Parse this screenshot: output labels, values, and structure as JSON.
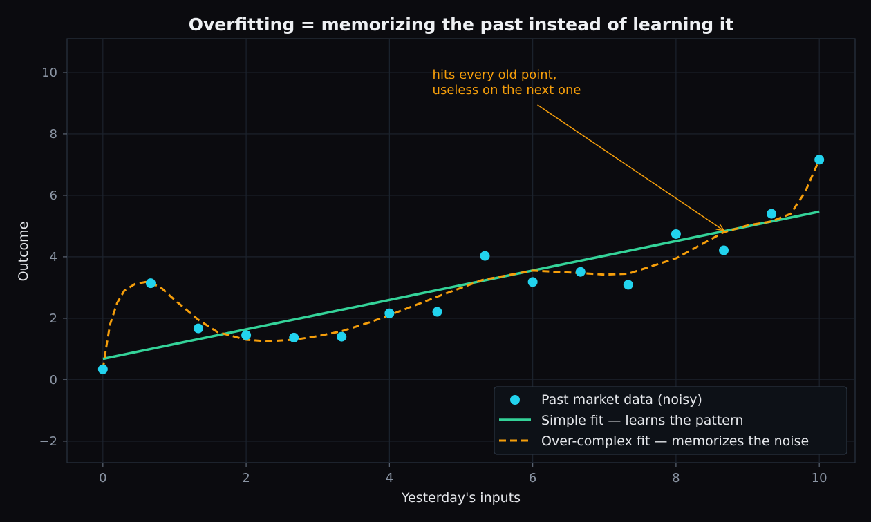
{
  "chart_data": {
    "type": "scatter",
    "title": "Overfitting = memorizing the past instead of learning it",
    "xlabel": "Yesterday's inputs",
    "ylabel": "Outcome",
    "xlim": [
      -0.5,
      10.5
    ],
    "ylim": [
      -2.7,
      11.1
    ],
    "xticks": [
      0,
      2,
      4,
      6,
      8,
      10
    ],
    "xtick_labels": [
      "0",
      "2",
      "4",
      "6",
      "8",
      "10"
    ],
    "yticks": [
      -2,
      0,
      2,
      4,
      6,
      8,
      10
    ],
    "ytick_labels": [
      "−2",
      "0",
      "2",
      "4",
      "6",
      "8",
      "10"
    ],
    "grid": true,
    "legend_position": "lower-right",
    "series": [
      {
        "name": "Past market data (noisy)",
        "kind": "scatter",
        "color": "#22d3ee",
        "x": [
          0,
          0.667,
          1.333,
          2.0,
          2.667,
          3.333,
          4.0,
          4.667,
          5.333,
          6.0,
          6.667,
          7.333,
          8.0,
          8.667,
          9.333,
          10.0
        ],
        "y": [
          0.34,
          3.14,
          1.67,
          1.45,
          1.37,
          1.4,
          2.16,
          2.21,
          4.03,
          3.18,
          3.51,
          3.09,
          4.74,
          4.21,
          5.4,
          7.16
        ]
      },
      {
        "name": "Simple fit — learns the pattern",
        "kind": "line",
        "color": "#34d399",
        "x": [
          0,
          10
        ],
        "y": [
          0.68,
          5.47
        ]
      },
      {
        "name": "Over-complex fit — memorizes the noise",
        "kind": "line",
        "style": "dashed",
        "color": "#f59e0b",
        "x": [
          0,
          0.05,
          0.1,
          0.2,
          0.3,
          0.45,
          0.6,
          0.8,
          1.0,
          1.333,
          1.6,
          2.0,
          2.3,
          2.667,
          3.0,
          3.333,
          3.7,
          4.0,
          4.667,
          5.3,
          6.0,
          6.667,
          7.0,
          7.333,
          8.0,
          8.667,
          9.0,
          9.333,
          9.6,
          9.8,
          10.0
        ],
        "y": [
          0.34,
          1.1,
          1.8,
          2.5,
          2.9,
          3.12,
          3.18,
          3.02,
          2.6,
          1.95,
          1.55,
          1.3,
          1.25,
          1.3,
          1.42,
          1.58,
          1.85,
          2.1,
          2.7,
          3.25,
          3.55,
          3.47,
          3.42,
          3.45,
          3.95,
          4.8,
          5.02,
          5.15,
          5.4,
          6.1,
          7.16
        ]
      }
    ],
    "annotations": [
      {
        "lines": [
          "hits every old point,",
          "useless on the next one"
        ],
        "color": "#f59e0b",
        "text_at": [
          4.6,
          9.8
        ],
        "arrow_to": [
          8.67,
          4.85
        ]
      }
    ]
  }
}
